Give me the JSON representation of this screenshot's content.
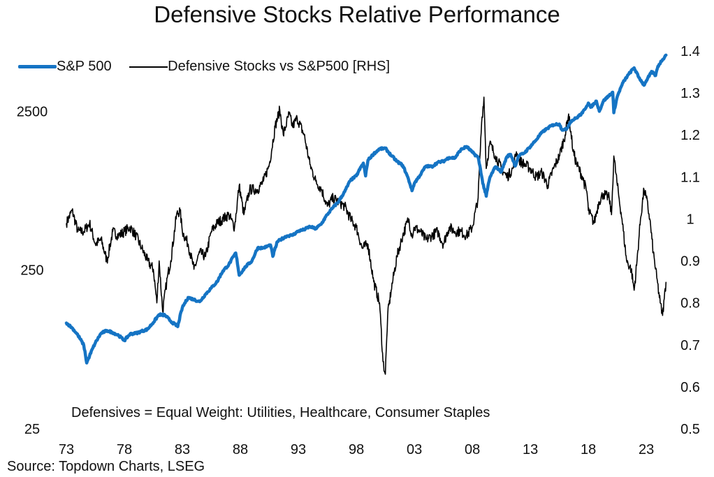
{
  "chart_data": {
    "type": "line",
    "title": "Defensive Stocks Relative Performance",
    "note": "Defensives = Equal Weight: Utilities, Healthcare, Consumer Staples",
    "source": "Source: Topdown Charts, LSEG",
    "colors": {
      "sp500": "#1574c4",
      "defensive": "#000000"
    },
    "legend_position": "top-left",
    "grid": false,
    "x_axis": {
      "type": "year",
      "range": [
        1973,
        2024.8
      ],
      "tick_values": [
        1973,
        1978,
        1983,
        1988,
        1993,
        1998,
        2003,
        2008,
        2013,
        2018,
        2023
      ],
      "tick_labels": [
        "73",
        "78",
        "83",
        "88",
        "93",
        "98",
        "03",
        "08",
        "13",
        "18",
        "23"
      ]
    },
    "y_left": {
      "scale": "log",
      "range": [
        25,
        6000
      ],
      "tick_values": [
        25,
        250,
        2500
      ],
      "tick_labels": [
        "25",
        "250",
        "2500"
      ]
    },
    "y_right": {
      "scale": "linear",
      "range": [
        0.5,
        1.4
      ],
      "tick_values": [
        0.5,
        0.6,
        0.7,
        0.8,
        0.9,
        1.0,
        1.1,
        1.2,
        1.3,
        1.4
      ],
      "tick_labels": [
        "0.5",
        "0.6",
        "0.7",
        "0.8",
        "0.9",
        "1",
        "1.1",
        "1.2",
        "1.3",
        "1.4"
      ]
    },
    "series": [
      {
        "name": "S&P 500",
        "axis": "left",
        "points": [
          [
            1973.0,
            116
          ],
          [
            1973.5,
            108
          ],
          [
            1974.0,
            97
          ],
          [
            1974.5,
            84
          ],
          [
            1974.75,
            65
          ],
          [
            1975.0,
            72
          ],
          [
            1975.5,
            87
          ],
          [
            1976.0,
            100
          ],
          [
            1976.5,
            104
          ],
          [
            1977.0,
            101
          ],
          [
            1977.5,
            97
          ],
          [
            1978.0,
            90
          ],
          [
            1978.5,
            99
          ],
          [
            1979.0,
            100
          ],
          [
            1979.5,
            103
          ],
          [
            1980.0,
            106
          ],
          [
            1980.5,
            117
          ],
          [
            1981.0,
            131
          ],
          [
            1981.5,
            130
          ],
          [
            1982.0,
            119
          ],
          [
            1982.6,
            110
          ],
          [
            1983.0,
            145
          ],
          [
            1983.5,
            168
          ],
          [
            1984.0,
            163
          ],
          [
            1984.5,
            158
          ],
          [
            1985.0,
            176
          ],
          [
            1985.5,
            193
          ],
          [
            1986.0,
            211
          ],
          [
            1986.5,
            247
          ],
          [
            1987.0,
            270
          ],
          [
            1987.6,
            320
          ],
          [
            1987.9,
            232
          ],
          [
            1988.5,
            265
          ],
          [
            1989.0,
            285
          ],
          [
            1989.5,
            345
          ],
          [
            1990.0,
            345
          ],
          [
            1990.6,
            360
          ],
          [
            1990.8,
            305
          ],
          [
            1991.2,
            378
          ],
          [
            1992.0,
            410
          ],
          [
            1992.5,
            415
          ],
          [
            1993.0,
            440
          ],
          [
            1993.5,
            450
          ],
          [
            1994.0,
            470
          ],
          [
            1994.5,
            455
          ],
          [
            1995.0,
            490
          ],
          [
            1995.5,
            560
          ],
          [
            1996.0,
            620
          ],
          [
            1996.5,
            680
          ],
          [
            1997.0,
            780
          ],
          [
            1997.5,
            920
          ],
          [
            1998.0,
            980
          ],
          [
            1998.6,
            1180
          ],
          [
            1998.8,
            980
          ],
          [
            1999.0,
            1230
          ],
          [
            1999.5,
            1350
          ],
          [
            2000.0,
            1450
          ],
          [
            2000.5,
            1460
          ],
          [
            2001.0,
            1320
          ],
          [
            2001.5,
            1210
          ],
          [
            2002.0,
            1140
          ],
          [
            2002.5,
            930
          ],
          [
            2002.8,
            790
          ],
          [
            2003.0,
            880
          ],
          [
            2003.5,
            990
          ],
          [
            2004.0,
            1130
          ],
          [
            2004.5,
            1120
          ],
          [
            2005.0,
            1190
          ],
          [
            2005.5,
            1210
          ],
          [
            2006.0,
            1280
          ],
          [
            2006.5,
            1270
          ],
          [
            2007.0,
            1430
          ],
          [
            2007.5,
            1500
          ],
          [
            2008.0,
            1380
          ],
          [
            2008.5,
            1280
          ],
          [
            2008.9,
            880
          ],
          [
            2009.2,
            730
          ],
          [
            2009.5,
            950
          ],
          [
            2010.0,
            1120
          ],
          [
            2010.5,
            1040
          ],
          [
            2011.0,
            1300
          ],
          [
            2011.3,
            1340
          ],
          [
            2011.7,
            1130
          ],
          [
            2012.0,
            1310
          ],
          [
            2012.5,
            1370
          ],
          [
            2013.0,
            1500
          ],
          [
            2013.5,
            1650
          ],
          [
            2014.0,
            1840
          ],
          [
            2014.5,
            1960
          ],
          [
            2015.0,
            2060
          ],
          [
            2015.5,
            2080
          ],
          [
            2015.7,
            1930
          ],
          [
            2016.1,
            1920
          ],
          [
            2016.5,
            2170
          ],
          [
            2017.0,
            2280
          ],
          [
            2017.5,
            2440
          ],
          [
            2018.0,
            2820
          ],
          [
            2018.2,
            2650
          ],
          [
            2018.7,
            2900
          ],
          [
            2018.95,
            2500
          ],
          [
            2019.3,
            2900
          ],
          [
            2019.9,
            3200
          ],
          [
            2020.1,
            3300
          ],
          [
            2020.2,
            2450
          ],
          [
            2020.5,
            3100
          ],
          [
            2021.0,
            3800
          ],
          [
            2021.5,
            4300
          ],
          [
            2021.95,
            4700
          ],
          [
            2022.3,
            4150
          ],
          [
            2022.8,
            3650
          ],
          [
            2023.0,
            3900
          ],
          [
            2023.5,
            4450
          ],
          [
            2023.8,
            4200
          ],
          [
            2024.0,
            4800
          ],
          [
            2024.4,
            5300
          ],
          [
            2024.7,
            5650
          ]
        ]
      },
      {
        "name": "Defensive Stocks vs S&P500 [RHS]",
        "axis": "right",
        "points": [
          [
            1973.0,
            0.99
          ],
          [
            1973.5,
            1.02
          ],
          [
            1974.0,
            0.97
          ],
          [
            1974.5,
            0.97
          ],
          [
            1975.0,
            0.99
          ],
          [
            1975.5,
            0.94
          ],
          [
            1976.0,
            0.95
          ],
          [
            1976.5,
            0.9
          ],
          [
            1977.0,
            0.97
          ],
          [
            1977.5,
            0.96
          ],
          [
            1978.0,
            0.97
          ],
          [
            1978.5,
            0.98
          ],
          [
            1979.0,
            0.96
          ],
          [
            1979.5,
            0.93
          ],
          [
            1980.0,
            0.9
          ],
          [
            1980.5,
            0.88
          ],
          [
            1980.8,
            0.8
          ],
          [
            1981.0,
            0.9
          ],
          [
            1981.3,
            0.78
          ],
          [
            1981.7,
            0.86
          ],
          [
            1982.0,
            0.9
          ],
          [
            1982.5,
            1.01
          ],
          [
            1982.8,
            1.02
          ],
          [
            1983.0,
            0.97
          ],
          [
            1983.5,
            0.94
          ],
          [
            1984.0,
            0.88
          ],
          [
            1984.5,
            0.92
          ],
          [
            1985.0,
            0.91
          ],
          [
            1985.5,
            0.97
          ],
          [
            1986.0,
            0.99
          ],
          [
            1986.5,
            1.0
          ],
          [
            1987.0,
            1.01
          ],
          [
            1987.5,
            0.98
          ],
          [
            1987.9,
            1.08
          ],
          [
            1988.3,
            1.01
          ],
          [
            1988.8,
            1.07
          ],
          [
            1989.5,
            1.07
          ],
          [
            1990.0,
            1.09
          ],
          [
            1990.5,
            1.13
          ],
          [
            1991.0,
            1.22
          ],
          [
            1991.4,
            1.26
          ],
          [
            1991.7,
            1.2
          ],
          [
            1992.2,
            1.25
          ],
          [
            1992.5,
            1.22
          ],
          [
            1992.9,
            1.24
          ],
          [
            1993.5,
            1.2
          ],
          [
            1994.0,
            1.13
          ],
          [
            1994.5,
            1.09
          ],
          [
            1995.0,
            1.07
          ],
          [
            1995.5,
            1.03
          ],
          [
            1996.0,
            1.05
          ],
          [
            1996.5,
            1.04
          ],
          [
            1997.0,
            1.03
          ],
          [
            1997.5,
            1.0
          ],
          [
            1998.0,
            0.98
          ],
          [
            1998.5,
            0.93
          ],
          [
            1999.0,
            0.94
          ],
          [
            1999.5,
            0.85
          ],
          [
            2000.0,
            0.8
          ],
          [
            2000.3,
            0.66
          ],
          [
            2000.5,
            0.63
          ],
          [
            2000.7,
            0.77
          ],
          [
            2001.0,
            0.83
          ],
          [
            2001.5,
            0.91
          ],
          [
            2002.0,
            0.96
          ],
          [
            2002.5,
            1.0
          ],
          [
            2002.8,
            0.96
          ],
          [
            2003.0,
            0.98
          ],
          [
            2003.5,
            0.97
          ],
          [
            2004.0,
            0.95
          ],
          [
            2004.5,
            0.96
          ],
          [
            2005.0,
            0.97
          ],
          [
            2005.5,
            0.94
          ],
          [
            2006.0,
            0.98
          ],
          [
            2006.5,
            0.97
          ],
          [
            2007.0,
            0.97
          ],
          [
            2007.5,
            0.96
          ],
          [
            2008.0,
            0.98
          ],
          [
            2008.5,
            1.05
          ],
          [
            2008.8,
            1.23
          ],
          [
            2009.0,
            1.29
          ],
          [
            2009.2,
            1.12
          ],
          [
            2009.5,
            1.18
          ],
          [
            2010.0,
            1.15
          ],
          [
            2010.5,
            1.12
          ],
          [
            2011.0,
            1.1
          ],
          [
            2011.5,
            1.12
          ],
          [
            2011.8,
            1.16
          ],
          [
            2012.0,
            1.14
          ],
          [
            2012.5,
            1.13
          ],
          [
            2013.0,
            1.12
          ],
          [
            2013.5,
            1.1
          ],
          [
            2014.0,
            1.11
          ],
          [
            2014.5,
            1.08
          ],
          [
            2015.0,
            1.12
          ],
          [
            2015.5,
            1.15
          ],
          [
            2016.0,
            1.2
          ],
          [
            2016.3,
            1.25
          ],
          [
            2016.7,
            1.16
          ],
          [
            2017.0,
            1.13
          ],
          [
            2017.5,
            1.1
          ],
          [
            2017.9,
            1.06
          ],
          [
            2018.0,
            1.02
          ],
          [
            2018.5,
            0.99
          ],
          [
            2018.9,
            1.04
          ],
          [
            2019.3,
            1.06
          ],
          [
            2019.8,
            1.05
          ],
          [
            2020.0,
            1.01
          ],
          [
            2020.2,
            1.15
          ],
          [
            2020.5,
            1.08
          ],
          [
            2020.9,
            1.0
          ],
          [
            2021.3,
            0.9
          ],
          [
            2021.7,
            0.88
          ],
          [
            2021.95,
            0.83
          ],
          [
            2022.2,
            0.9
          ],
          [
            2022.5,
            1.0
          ],
          [
            2022.8,
            1.07
          ],
          [
            2023.0,
            1.05
          ],
          [
            2023.3,
            1.0
          ],
          [
            2023.6,
            0.92
          ],
          [
            2023.9,
            0.86
          ],
          [
            2024.2,
            0.8
          ],
          [
            2024.4,
            0.77
          ],
          [
            2024.55,
            0.81
          ],
          [
            2024.7,
            0.85
          ]
        ]
      }
    ]
  }
}
